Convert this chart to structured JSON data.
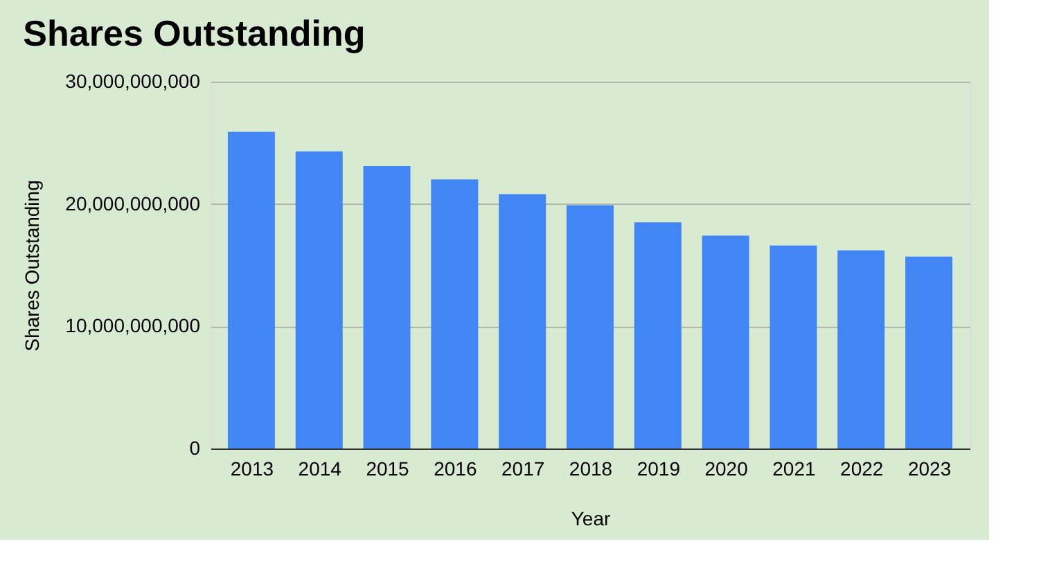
{
  "chart_data": {
    "type": "bar",
    "title": "Shares Outstanding",
    "xlabel": "Year",
    "ylabel": "Shares Outstanding",
    "categories": [
      "2013",
      "2014",
      "2015",
      "2016",
      "2017",
      "2018",
      "2019",
      "2020",
      "2021",
      "2022",
      "2023"
    ],
    "values": [
      25900000000,
      24300000000,
      23100000000,
      22000000000,
      20800000000,
      19900000000,
      18500000000,
      17400000000,
      16600000000,
      16200000000,
      15700000000
    ],
    "color": "#4285f4",
    "ylim": [
      0,
      30000000000
    ],
    "yticks": [
      {
        "value": 0,
        "label": "0"
      },
      {
        "value": 10000000000,
        "label": "10,000,000,000"
      },
      {
        "value": 20000000000,
        "label": "20,000,000,000"
      },
      {
        "value": 30000000000,
        "label": "30,000,000,000"
      }
    ],
    "grid": "y"
  }
}
